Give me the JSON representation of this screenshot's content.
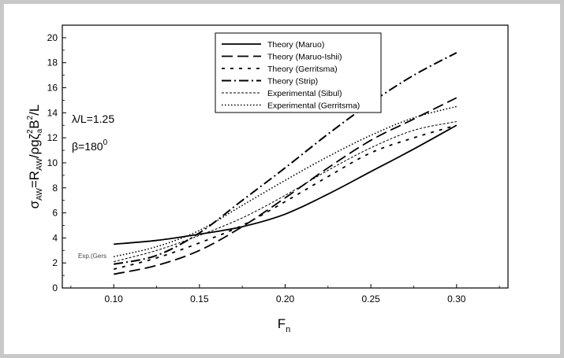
{
  "chart_data": {
    "type": "line",
    "xlabel": "F",
    "xlabel_sub": "n",
    "ylabel_parts": {
      "a": "σ",
      "a_sub": "AW",
      "b": "=R",
      "b_sub": "AW",
      "c": "/ρgζ",
      "c_sup": "2",
      "c_sub": "a",
      "d": "B",
      "d_sup": "2",
      "e": "/L"
    },
    "xlim": [
      0.07,
      0.33
    ],
    "ylim": [
      0,
      21
    ],
    "xticks": [
      0.1,
      0.15,
      0.2,
      0.25,
      0.3
    ],
    "xtick_labels": [
      "0.10",
      "0.15",
      "0.20",
      "0.25",
      "0.30"
    ],
    "yticks": [
      0,
      2,
      4,
      6,
      8,
      10,
      12,
      14,
      16,
      18,
      20
    ],
    "ytick_labels": [
      "0",
      "2",
      "4",
      "6",
      "8",
      "10",
      "12",
      "14",
      "16",
      "18",
      "20"
    ],
    "annotations": {
      "lambda": "λ/L=1.25",
      "beta": "β=180",
      "beta_sup": "0",
      "exp_label": "Exp.(Gers"
    },
    "legend_position": "top-right",
    "series": [
      {
        "name": "Theory (Maruo)",
        "dash": "solid",
        "x": [
          0.1,
          0.125,
          0.15,
          0.175,
          0.2,
          0.225,
          0.25,
          0.275,
          0.3
        ],
        "y": [
          3.5,
          3.8,
          4.3,
          4.9,
          5.9,
          7.5,
          9.3,
          11.1,
          13.0
        ]
      },
      {
        "name": "Theory (Maruo-Ishii)",
        "dash": "long-dash",
        "x": [
          0.1,
          0.125,
          0.15,
          0.175,
          0.2,
          0.225,
          0.25,
          0.275,
          0.3
        ],
        "y": [
          1.1,
          1.8,
          3.0,
          4.9,
          7.2,
          9.6,
          11.8,
          13.5,
          15.2
        ]
      },
      {
        "name": "Theory (Gerritsma)",
        "dash": "short-dash",
        "x": [
          0.1,
          0.125,
          0.15,
          0.175,
          0.2,
          0.225,
          0.25,
          0.275,
          0.3
        ],
        "y": [
          1.5,
          2.4,
          3.6,
          5.0,
          6.9,
          8.9,
          10.8,
          12.0,
          13.0
        ]
      },
      {
        "name": "Theory (Strip)",
        "dash": "dash-dot",
        "x": [
          0.1,
          0.125,
          0.15,
          0.175,
          0.2,
          0.225,
          0.25,
          0.275,
          0.3
        ],
        "y": [
          1.9,
          2.6,
          4.4,
          7.0,
          9.6,
          12.3,
          14.8,
          17.0,
          18.8
        ]
      },
      {
        "name": "Experimental (Sibul)",
        "dash": "fine-dash",
        "x": [
          0.1,
          0.125,
          0.15,
          0.175,
          0.2,
          0.225,
          0.25,
          0.275,
          0.3
        ],
        "y": [
          2.1,
          3.0,
          4.2,
          5.6,
          7.4,
          9.4,
          11.2,
          12.6,
          13.3
        ]
      },
      {
        "name": "Experimental (Gerritsma)",
        "dash": "dotted",
        "x": [
          0.1,
          0.125,
          0.15,
          0.175,
          0.2,
          0.225,
          0.25,
          0.275,
          0.3
        ],
        "y": [
          2.5,
          3.3,
          4.6,
          6.6,
          8.6,
          10.5,
          12.2,
          13.6,
          14.5
        ]
      }
    ]
  }
}
